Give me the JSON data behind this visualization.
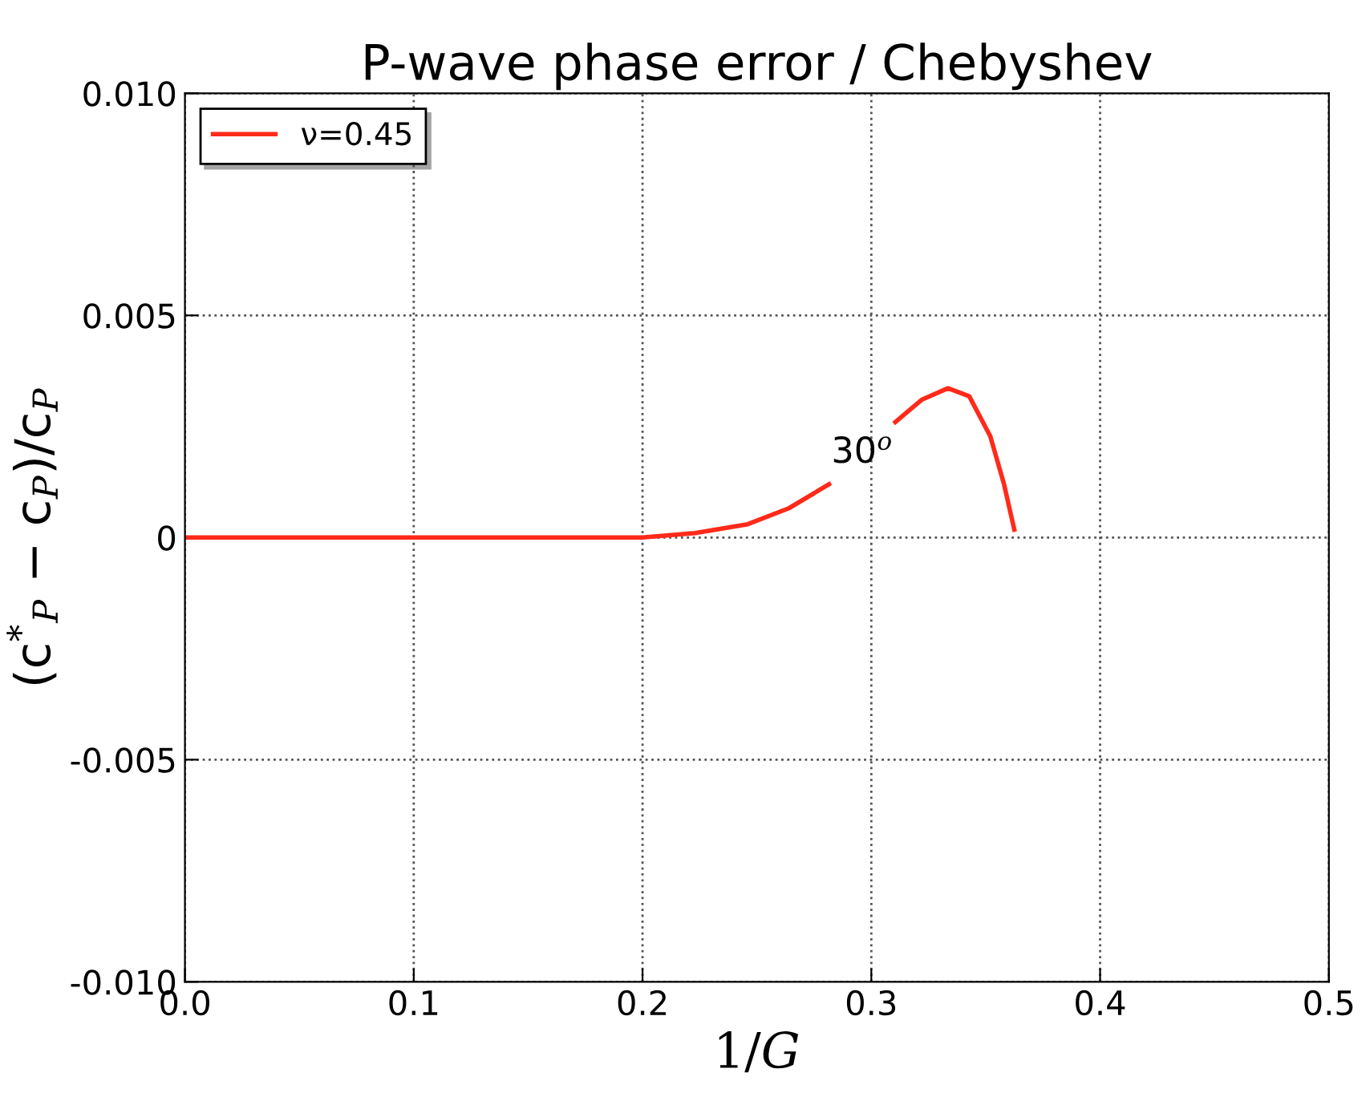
{
  "chart_data": {
    "type": "line",
    "title": "P-wave phase error / Chebyshev",
    "xlabel": "1/G",
    "ylabel": "(c$^{*}$$_{P}$ − c$_{P}$)/c$_{P}$",
    "x": [
      0.0,
      0.1,
      0.2,
      0.223,
      0.246,
      0.264,
      0.2815,
      0.296,
      0.3105,
      0.322,
      0.3335,
      0.3428,
      0.352,
      0.358,
      0.3625
    ],
    "series": [
      {
        "name": "ν=0.45",
        "color": "#ff2a1a",
        "values": [
          0,
          0,
          0,
          0.0001,
          0.0003,
          0.00066,
          0.0012,
          null,
          0.0026,
          0.0031,
          0.00336,
          0.00318,
          0.00228,
          0.0012,
          0.00018
        ]
      }
    ],
    "annotations": [
      "30$^{o}$"
    ],
    "xlim": [
      0.0,
      0.5
    ],
    "xticks": [
      {
        "value": 0.0,
        "label": "0.0"
      },
      0.1,
      0.2,
      0.3,
      0.4,
      0.5
    ],
    "ylim": [
      -0.01,
      0.01
    ],
    "yticks": [
      {
        "value": -0.01,
        "label": "-0.010"
      },
      {
        "value": -0.005,
        "label": "-0.005"
      },
      {
        "value": 0,
        "label": "0"
      },
      {
        "value": 0.005,
        "label": "0.005"
      },
      {
        "value": 0.01,
        "label": "0.010"
      }
    ],
    "grid": true,
    "legend": "top left",
    "line_style": "solid",
    "marker": "none"
  }
}
